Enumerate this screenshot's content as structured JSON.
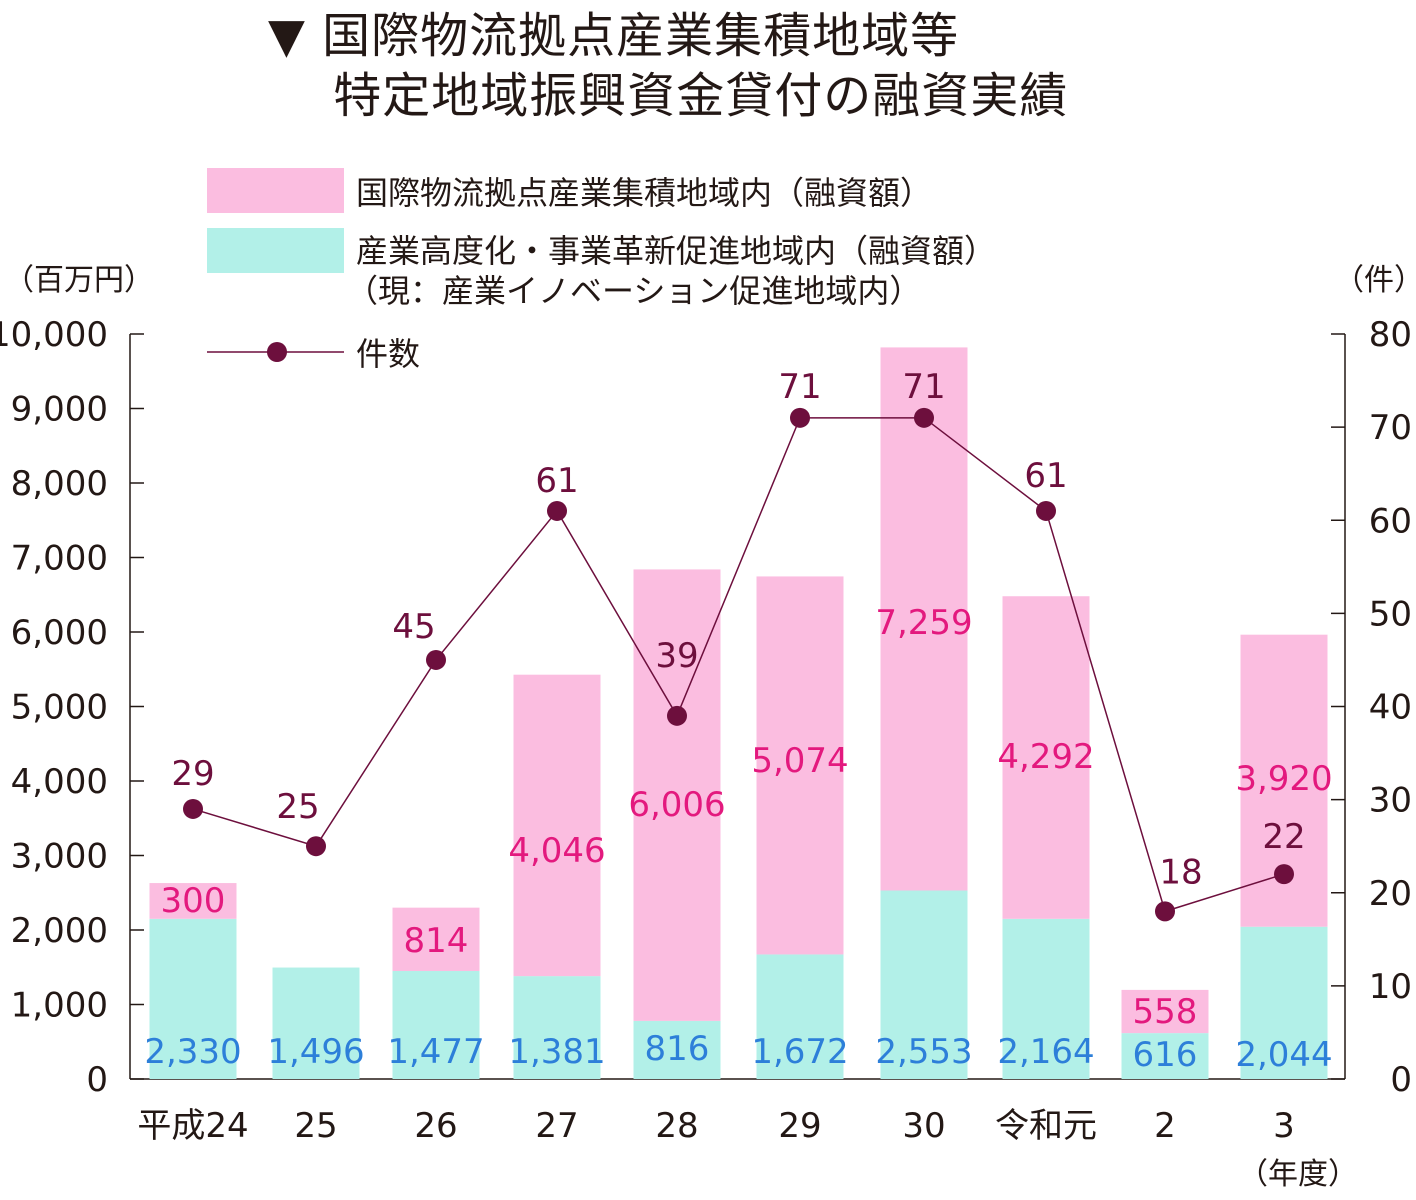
{
  "title": {
    "line1": "▼ 国際物流拠点産業集積地域等",
    "line2": "　 特定地域振興資金貸付の融資実績"
  },
  "colors": {
    "pink": "#fbbde0",
    "cyan": "#b2f0e8",
    "pink_label": "#e3197e",
    "blue_label": "#2d7fd9",
    "line": "#6d0f3d",
    "axis": "#231815"
  },
  "chart_data": {
    "type": "bar",
    "stacked": true,
    "categories": [
      "平成24",
      "25",
      "26",
      "27",
      "28",
      "29",
      "30",
      "令和元",
      "2",
      "3"
    ],
    "xlabel": "（年度）",
    "ylabel_left": "（百万円）",
    "ylabel_right": "（件）",
    "ylim_left": [
      0,
      10000
    ],
    "ylim_right": [
      0,
      80
    ],
    "yticks_left": [
      "0",
      "1,000",
      "2,000",
      "3,000",
      "4,000",
      "5,000",
      "6,000",
      "7,000",
      "8,000",
      "9,000",
      "10,000"
    ],
    "yticks_right": [
      "0",
      "10",
      "20",
      "30",
      "40",
      "50",
      "60",
      "70",
      "80"
    ],
    "legend": {
      "pink": "国際物流拠点産業集積地域内（融資額）",
      "cyan_line1": "産業高度化・事業革新促進地域内（融資額）",
      "cyan_line2": "（現：産業イノベーション促進地域内）",
      "line": "件数"
    },
    "series": [
      {
        "key": "cyan",
        "values": [
          2330,
          1496,
          1477,
          1381,
          816,
          1672,
          2553,
          2164,
          616,
          2044
        ],
        "labels": [
          "2,330",
          "1,496",
          "1,477",
          "1,381",
          "816",
          "1,672",
          "2,553",
          "2,164",
          "616",
          "2,044"
        ],
        "bar_heights": [
          2150,
          1496,
          1450,
          1381,
          780,
          1672,
          2530,
          2150,
          616,
          2044
        ]
      },
      {
        "key": "pink",
        "values": [
          300,
          null,
          814,
          4046,
          6006,
          5074,
          7259,
          4292,
          558,
          3920
        ],
        "labels": [
          "300",
          "",
          "814",
          "4,046",
          "6,006",
          "5,074",
          "7,259",
          "4,292",
          "558",
          "3,920"
        ],
        "bar_heights": [
          480,
          0,
          850,
          4046,
          6060,
          5074,
          7290,
          4330,
          580,
          3920
        ]
      },
      {
        "key": "line",
        "axis": "right",
        "values": [
          29,
          25,
          45,
          61,
          39,
          71,
          71,
          61,
          18,
          22
        ],
        "labels": [
          "29",
          "25",
          "45",
          "61",
          "39",
          "71",
          "71",
          "61",
          "18",
          "22"
        ]
      }
    ]
  }
}
